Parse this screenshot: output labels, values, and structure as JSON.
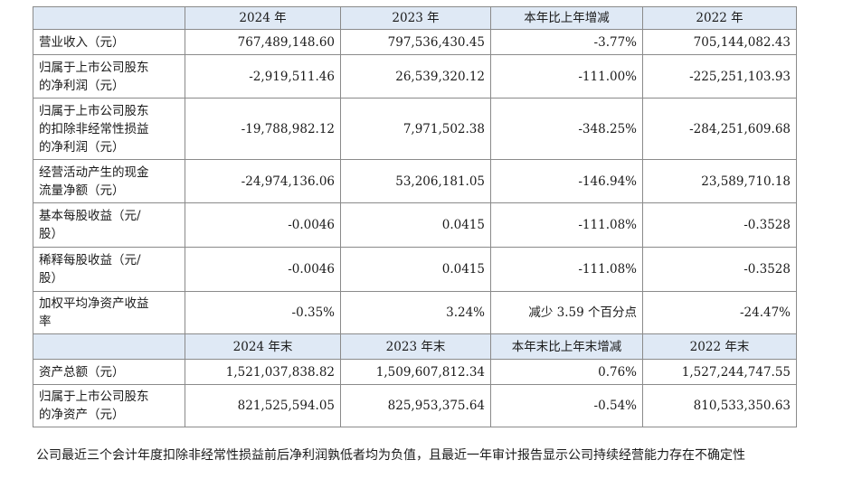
{
  "header1": [
    "",
    "2024 年",
    "2023 年",
    "本年比上年增减",
    "2022 年"
  ],
  "rows1": [
    {
      "label": [
        "营业收入（元）"
      ],
      "v2024": "767,489,148.60",
      "v2023": "797,536,430.45",
      "chg": "-3.77%",
      "v2022": "705,144,082.43"
    },
    {
      "label": [
        "归属于上市公司股东",
        "的净利润（元）"
      ],
      "v2024": "-2,919,511.46",
      "v2023": "26,539,320.12",
      "chg": "-111.00%",
      "v2022": "-225,251,103.93"
    },
    {
      "label": [
        "归属于上市公司股东",
        "的扣除非经常性损益",
        "的净利润（元）"
      ],
      "v2024": "-19,788,982.12",
      "v2023": "7,971,502.38",
      "chg": "-348.25%",
      "v2022": "-284,251,609.68"
    },
    {
      "label": [
        "经营活动产生的现金",
        "流量净额（元）"
      ],
      "v2024": "-24,974,136.06",
      "v2023": "53,206,181.05",
      "chg": "-146.94%",
      "v2022": "23,589,710.18"
    },
    {
      "label": [
        "基本每股收益（元/",
        "股）"
      ],
      "v2024": "-0.0046",
      "v2023": "0.0415",
      "chg": "-111.08%",
      "v2022": "-0.3528"
    },
    {
      "label": [
        "稀释每股收益（元/",
        "股）"
      ],
      "v2024": "-0.0046",
      "v2023": "0.0415",
      "chg": "-111.08%",
      "v2022": "-0.3528"
    },
    {
      "label": [
        "加权平均净资产收益",
        "率"
      ],
      "v2024": "-0.35%",
      "v2023": "3.24%",
      "chg": "减少 3.59 个百分点",
      "v2022": "-24.47%"
    }
  ],
  "header2": [
    "",
    "2024 年末",
    "2023 年末",
    "本年末比上年末增减",
    "2022 年末"
  ],
  "rows2": [
    {
      "label": [
        "资产总额（元）"
      ],
      "v2024": "1,521,037,838.82",
      "v2023": "1,509,607,812.34",
      "chg": "0.76%",
      "v2022": "1,527,244,747.55"
    },
    {
      "label": [
        "归属于上市公司股东",
        "的净资产（元）"
      ],
      "v2024": "821,525,594.05",
      "v2023": "825,953,375.64",
      "chg": "-0.54%",
      "v2022": "810,533,350.63"
    }
  ],
  "note": "公司最近三个会计年度扣除非经常性损益前后净利润孰低者均为负值，且最近一年审计报告显示公司持续经营能力存在不确定性"
}
